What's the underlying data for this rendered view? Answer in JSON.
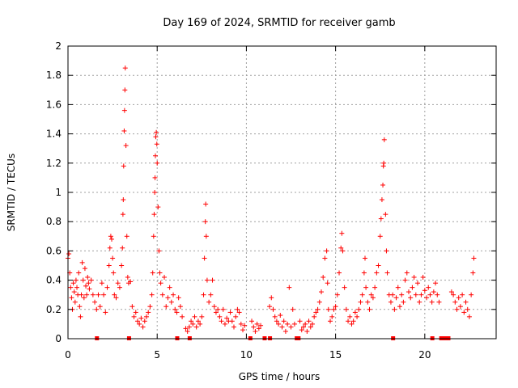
{
  "chart_data": {
    "type": "scatter",
    "title": "Day 169 of 2024, SRMTID for receiver gamb",
    "xlabel": "GPS time / hours",
    "ylabel": "SRMTID / TECUs",
    "xlim": [
      0,
      24
    ],
    "ylim": [
      0,
      2
    ],
    "grid": true,
    "marker": "+",
    "color": "#ff0000",
    "x_ticks": [
      0,
      5,
      10,
      15,
      20
    ],
    "x_tick_labels": [
      "0",
      "5",
      "10",
      "15",
      "20"
    ],
    "y_ticks": [
      0,
      0.2,
      0.4,
      0.6,
      0.8,
      1,
      1.2,
      1.4,
      1.6,
      1.8,
      2
    ],
    "y_tick_labels": [
      "0",
      "0.2",
      "0.4",
      "0.6",
      "0.8",
      "1",
      "1.2",
      "1.4",
      "1.6",
      "1.8",
      "2"
    ],
    "points": [
      [
        0.0,
        0.55
      ],
      [
        0.05,
        0.58
      ],
      [
        0.1,
        0.45
      ],
      [
        0.15,
        0.35
      ],
      [
        0.2,
        0.28
      ],
      [
        0.25,
        0.2
      ],
      [
        0.3,
        0.38
      ],
      [
        0.35,
        0.32
      ],
      [
        0.4,
        0.25
      ],
      [
        0.45,
        0.4
      ],
      [
        0.5,
        0.35
      ],
      [
        0.55,
        0.3
      ],
      [
        0.6,
        0.45
      ],
      [
        0.65,
        0.22
      ],
      [
        0.7,
        0.15
      ],
      [
        0.75,
        0.3
      ],
      [
        0.8,
        0.52
      ],
      [
        0.85,
        0.4
      ],
      [
        0.9,
        0.28
      ],
      [
        0.95,
        0.48
      ],
      [
        1.0,
        0.36
      ],
      [
        1.05,
        0.3
      ],
      [
        1.1,
        0.42
      ],
      [
        1.15,
        0.38
      ],
      [
        1.2,
        0.34
      ],
      [
        1.3,
        0.4
      ],
      [
        1.4,
        0.3
      ],
      [
        1.5,
        0.25
      ],
      [
        1.6,
        0.2
      ],
      [
        1.7,
        0.3
      ],
      [
        1.8,
        0.22
      ],
      [
        1.9,
        0.38
      ],
      [
        2.0,
        0.3
      ],
      [
        2.1,
        0.18
      ],
      [
        2.2,
        0.35
      ],
      [
        2.3,
        0.5
      ],
      [
        2.35,
        0.62
      ],
      [
        2.4,
        0.7
      ],
      [
        2.45,
        0.68
      ],
      [
        2.5,
        0.55
      ],
      [
        2.55,
        0.45
      ],
      [
        2.6,
        0.3
      ],
      [
        2.7,
        0.28
      ],
      [
        2.8,
        0.38
      ],
      [
        2.9,
        0.35
      ],
      [
        3.0,
        0.5
      ],
      [
        3.05,
        0.62
      ],
      [
        3.08,
        0.85
      ],
      [
        3.1,
        0.95
      ],
      [
        3.12,
        1.18
      ],
      [
        3.15,
        1.42
      ],
      [
        3.17,
        1.56
      ],
      [
        3.19,
        1.7
      ],
      [
        3.21,
        1.85
      ],
      [
        3.25,
        1.32
      ],
      [
        3.3,
        0.7
      ],
      [
        3.35,
        0.42
      ],
      [
        3.4,
        0.38
      ],
      [
        3.5,
        0.39
      ],
      [
        3.6,
        0.22
      ],
      [
        3.7,
        0.15
      ],
      [
        3.8,
        0.18
      ],
      [
        3.9,
        0.12
      ],
      [
        4.0,
        0.1
      ],
      [
        4.1,
        0.14
      ],
      [
        4.2,
        0.08
      ],
      [
        4.3,
        0.12
      ],
      [
        4.4,
        0.15
      ],
      [
        4.5,
        0.18
      ],
      [
        4.6,
        0.22
      ],
      [
        4.7,
        0.3
      ],
      [
        4.75,
        0.45
      ],
      [
        4.8,
        0.7
      ],
      [
        4.83,
        0.85
      ],
      [
        4.86,
        1.0
      ],
      [
        4.88,
        1.1
      ],
      [
        4.9,
        1.25
      ],
      [
        4.92,
        1.38
      ],
      [
        4.95,
        1.41
      ],
      [
        4.98,
        1.33
      ],
      [
        5.0,
        1.2
      ],
      [
        5.05,
        0.9
      ],
      [
        5.1,
        0.6
      ],
      [
        5.15,
        0.45
      ],
      [
        5.2,
        0.38
      ],
      [
        5.3,
        0.3
      ],
      [
        5.4,
        0.42
      ],
      [
        5.5,
        0.22
      ],
      [
        5.6,
        0.28
      ],
      [
        5.7,
        0.35
      ],
      [
        5.8,
        0.25
      ],
      [
        5.9,
        0.3
      ],
      [
        6.0,
        0.2
      ],
      [
        6.1,
        0.18
      ],
      [
        6.2,
        0.28
      ],
      [
        6.3,
        0.22
      ],
      [
        6.4,
        0.15
      ],
      [
        6.6,
        0.07
      ],
      [
        6.7,
        0.05
      ],
      [
        6.8,
        0.08
      ],
      [
        6.9,
        0.12
      ],
      [
        7.0,
        0.1
      ],
      [
        7.1,
        0.15
      ],
      [
        7.2,
        0.08
      ],
      [
        7.3,
        0.12
      ],
      [
        7.4,
        0.1
      ],
      [
        7.5,
        0.15
      ],
      [
        7.6,
        0.3
      ],
      [
        7.65,
        0.55
      ],
      [
        7.7,
        0.8
      ],
      [
        7.72,
        0.92
      ],
      [
        7.75,
        0.7
      ],
      [
        7.8,
        0.4
      ],
      [
        7.9,
        0.25
      ],
      [
        8.0,
        0.3
      ],
      [
        8.1,
        0.4
      ],
      [
        8.2,
        0.22
      ],
      [
        8.3,
        0.18
      ],
      [
        8.4,
        0.2
      ],
      [
        8.5,
        0.15
      ],
      [
        8.6,
        0.12
      ],
      [
        8.7,
        0.2
      ],
      [
        8.8,
        0.1
      ],
      [
        8.9,
        0.14
      ],
      [
        9.0,
        0.12
      ],
      [
        9.1,
        0.18
      ],
      [
        9.2,
        0.12
      ],
      [
        9.3,
        0.08
      ],
      [
        9.4,
        0.15
      ],
      [
        9.5,
        0.2
      ],
      [
        9.6,
        0.18
      ],
      [
        9.7,
        0.1
      ],
      [
        9.8,
        0.06
      ],
      [
        9.9,
        0.09
      ],
      [
        10.3,
        0.12
      ],
      [
        10.4,
        0.08
      ],
      [
        10.5,
        0.05
      ],
      [
        10.6,
        0.1
      ],
      [
        10.7,
        0.07
      ],
      [
        10.8,
        0.09
      ],
      [
        11.3,
        0.22
      ],
      [
        11.4,
        0.28
      ],
      [
        11.5,
        0.2
      ],
      [
        11.6,
        0.15
      ],
      [
        11.7,
        0.12
      ],
      [
        11.8,
        0.1
      ],
      [
        11.9,
        0.16
      ],
      [
        12.0,
        0.08
      ],
      [
        12.1,
        0.12
      ],
      [
        12.2,
        0.05
      ],
      [
        12.3,
        0.1
      ],
      [
        12.4,
        0.35
      ],
      [
        12.5,
        0.08
      ],
      [
        12.6,
        0.2
      ],
      [
        12.7,
        0.1
      ],
      [
        13.0,
        0.12
      ],
      [
        13.1,
        0.06
      ],
      [
        13.2,
        0.08
      ],
      [
        13.3,
        0.1
      ],
      [
        13.4,
        0.05
      ],
      [
        13.5,
        0.12
      ],
      [
        13.6,
        0.08
      ],
      [
        13.7,
        0.1
      ],
      [
        13.8,
        0.15
      ],
      [
        13.9,
        0.18
      ],
      [
        14.0,
        0.2
      ],
      [
        14.1,
        0.25
      ],
      [
        14.2,
        0.32
      ],
      [
        14.3,
        0.42
      ],
      [
        14.4,
        0.55
      ],
      [
        14.5,
        0.6
      ],
      [
        14.55,
        0.38
      ],
      [
        14.6,
        0.2
      ],
      [
        14.7,
        0.12
      ],
      [
        14.8,
        0.15
      ],
      [
        14.9,
        0.2
      ],
      [
        15.0,
        0.22
      ],
      [
        15.1,
        0.3
      ],
      [
        15.2,
        0.45
      ],
      [
        15.3,
        0.62
      ],
      [
        15.35,
        0.72
      ],
      [
        15.4,
        0.6
      ],
      [
        15.5,
        0.35
      ],
      [
        15.6,
        0.2
      ],
      [
        15.7,
        0.12
      ],
      [
        15.8,
        0.15
      ],
      [
        15.9,
        0.1
      ],
      [
        16.0,
        0.12
      ],
      [
        16.1,
        0.18
      ],
      [
        16.2,
        0.15
      ],
      [
        16.3,
        0.2
      ],
      [
        16.4,
        0.25
      ],
      [
        16.5,
        0.3
      ],
      [
        16.6,
        0.45
      ],
      [
        16.65,
        0.55
      ],
      [
        16.7,
        0.35
      ],
      [
        16.8,
        0.25
      ],
      [
        16.9,
        0.2
      ],
      [
        17.0,
        0.3
      ],
      [
        17.1,
        0.28
      ],
      [
        17.2,
        0.35
      ],
      [
        17.3,
        0.45
      ],
      [
        17.4,
        0.5
      ],
      [
        17.5,
        0.7
      ],
      [
        17.55,
        0.82
      ],
      [
        17.6,
        0.95
      ],
      [
        17.65,
        1.05
      ],
      [
        17.68,
        1.18
      ],
      [
        17.7,
        1.2
      ],
      [
        17.73,
        1.36
      ],
      [
        17.8,
        0.85
      ],
      [
        17.85,
        0.6
      ],
      [
        17.9,
        0.45
      ],
      [
        18.0,
        0.3
      ],
      [
        18.1,
        0.25
      ],
      [
        18.2,
        0.3
      ],
      [
        18.3,
        0.2
      ],
      [
        18.4,
        0.28
      ],
      [
        18.5,
        0.35
      ],
      [
        18.6,
        0.22
      ],
      [
        18.7,
        0.3
      ],
      [
        18.8,
        0.25
      ],
      [
        18.9,
        0.4
      ],
      [
        19.0,
        0.45
      ],
      [
        19.1,
        0.32
      ],
      [
        19.2,
        0.28
      ],
      [
        19.3,
        0.35
      ],
      [
        19.4,
        0.42
      ],
      [
        19.5,
        0.3
      ],
      [
        19.6,
        0.38
      ],
      [
        19.7,
        0.25
      ],
      [
        19.8,
        0.3
      ],
      [
        19.9,
        0.42
      ],
      [
        20.0,
        0.33
      ],
      [
        20.1,
        0.28
      ],
      [
        20.2,
        0.35
      ],
      [
        20.3,
        0.3
      ],
      [
        20.4,
        0.25
      ],
      [
        20.5,
        0.32
      ],
      [
        20.6,
        0.38
      ],
      [
        20.7,
        0.3
      ],
      [
        20.8,
        0.25
      ],
      [
        21.5,
        0.32
      ],
      [
        21.6,
        0.3
      ],
      [
        21.7,
        0.25
      ],
      [
        21.8,
        0.2
      ],
      [
        21.9,
        0.28
      ],
      [
        22.0,
        0.22
      ],
      [
        22.1,
        0.3
      ],
      [
        22.2,
        0.18
      ],
      [
        22.3,
        0.25
      ],
      [
        22.4,
        0.2
      ],
      [
        22.5,
        0.15
      ],
      [
        22.6,
        0.3
      ],
      [
        22.7,
        0.45
      ],
      [
        22.75,
        0.55
      ]
    ],
    "zero_points": [
      1.6,
      3.4,
      6.1,
      6.8,
      10.2,
      11.0,
      11.3,
      12.8,
      12.9,
      18.2,
      20.4,
      20.9,
      21.1,
      21.3
    ]
  }
}
